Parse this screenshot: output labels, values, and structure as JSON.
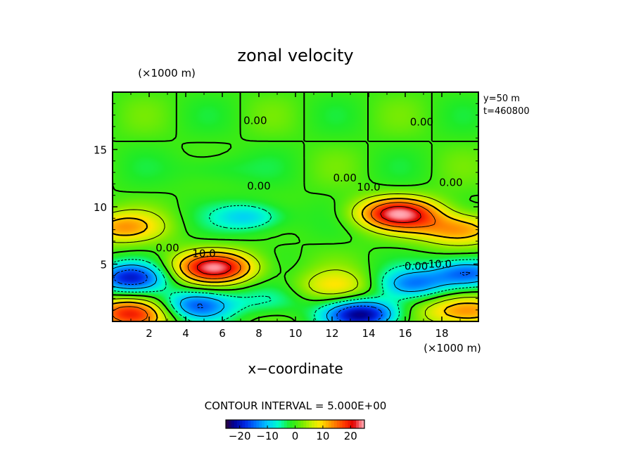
{
  "chart_data": {
    "type": "heatmap",
    "title": "zonal velocity",
    "xlabel": "x−coordinate",
    "x_unit": "(×1000 m)",
    "y_unit": "(×1000 m)",
    "xlim": [
      0,
      20
    ],
    "ylim": [
      0,
      20
    ],
    "x_ticks": [
      2,
      4,
      6,
      8,
      10,
      12,
      14,
      16,
      18
    ],
    "y_ticks": [
      5,
      10,
      15
    ],
    "info": [
      "y=50  m",
      "t=460800"
    ],
    "contour_interval_text": "CONTOUR INTERVAL = 5.000E+00",
    "colorbar": {
      "range": [
        -25,
        25
      ],
      "ticks": [
        -20,
        -10,
        0,
        10,
        20
      ],
      "tick_labels": [
        "−20",
        "−10",
        "0",
        "10",
        "20"
      ]
    },
    "grid": false,
    "contour_labels": [
      {
        "text": "0.00",
        "x": 7.8,
        "y": 17.2
      },
      {
        "text": "0.00",
        "x": 16.9,
        "y": 17.1
      },
      {
        "text": "0.00",
        "x": 12.7,
        "y": 12.2
      },
      {
        "text": "10.0",
        "x": 14.0,
        "y": 11.4
      },
      {
        "text": "0.00",
        "x": 18.5,
        "y": 11.8
      },
      {
        "text": "0.00",
        "x": 8.0,
        "y": 11.5
      },
      {
        "text": "0.00",
        "x": 3.0,
        "y": 6.1
      },
      {
        "text": "10.0",
        "x": 5.0,
        "y": 5.6
      },
      {
        "text": "0.00",
        "x": 16.6,
        "y": 4.5
      },
      {
        "text": "10.0",
        "x": 17.9,
        "y": 4.7
      }
    ],
    "features": [
      {
        "kind": "max",
        "x": 5.6,
        "y": 4.7,
        "value": 22
      },
      {
        "kind": "max",
        "x": 15.6,
        "y": 9.4,
        "value": 22
      },
      {
        "kind": "max",
        "x": 0.9,
        "y": 0.7,
        "value": 18
      },
      {
        "kind": "max",
        "x": 19.3,
        "y": 0.9,
        "value": 15
      },
      {
        "kind": "max",
        "x": 0.4,
        "y": 8.2,
        "value": 12
      },
      {
        "kind": "max",
        "x": 19.0,
        "y": 8.0,
        "value": 14
      },
      {
        "kind": "max",
        "x": 12.2,
        "y": 3.0,
        "value": 8
      },
      {
        "kind": "min",
        "x": 0.9,
        "y": 3.8,
        "value": -18
      },
      {
        "kind": "min",
        "x": 4.5,
        "y": 1.4,
        "value": -15
      },
      {
        "kind": "min",
        "x": 13.7,
        "y": 0.6,
        "value": -22
      },
      {
        "kind": "min",
        "x": 19.4,
        "y": 4.2,
        "value": -17
      },
      {
        "kind": "min",
        "x": 16.4,
        "y": 3.2,
        "value": -12
      },
      {
        "kind": "min",
        "x": 7.6,
        "y": 9.1,
        "value": -10
      },
      {
        "kind": "min",
        "x": 8.5,
        "y": 1.8,
        "value": -6
      },
      {
        "kind": "min",
        "x": 5.5,
        "y": 13.3,
        "value": -4
      }
    ]
  }
}
